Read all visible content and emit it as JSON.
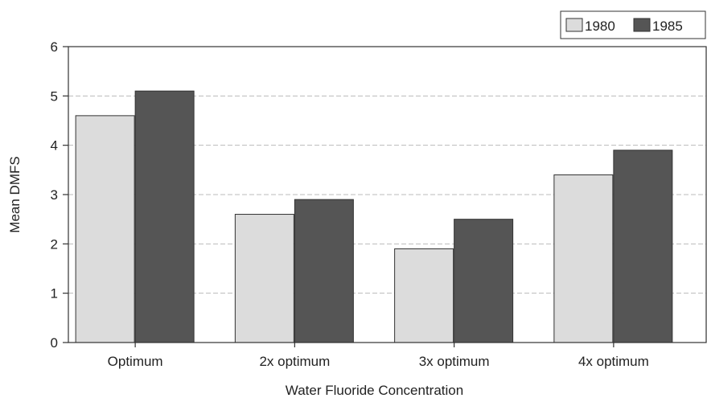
{
  "chart_data": {
    "type": "bar",
    "title": "",
    "xlabel": "Water Fluoride Concentration",
    "ylabel": "Mean DMFS",
    "categories": [
      "Optimum",
      "2x optimum",
      "3x optimum",
      "4x optimum"
    ],
    "series": [
      {
        "name": "1980",
        "values": [
          4.6,
          2.6,
          1.9,
          3.4
        ],
        "color": "#dcdcdc"
      },
      {
        "name": "1985",
        "values": [
          5.1,
          2.9,
          2.5,
          3.9
        ],
        "color": "#555555"
      }
    ],
    "ylim": [
      0,
      6
    ],
    "yticks": [
      "0",
      "1",
      "2",
      "3",
      "4",
      "5",
      "6"
    ],
    "grid": true,
    "legend_position": "top-right"
  }
}
